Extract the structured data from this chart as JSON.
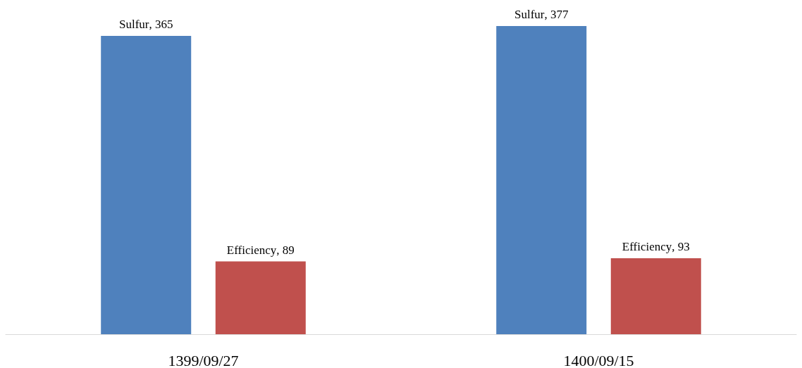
{
  "chart_data": {
    "type": "bar",
    "categories": [
      "1399/09/27",
      "1400/09/15"
    ],
    "series": [
      {
        "name": "Sulfur",
        "color": "#4f81bd",
        "values": [
          365,
          377
        ],
        "value_labels": [
          ", 365",
          ", 377"
        ]
      },
      {
        "name": "Efficiency",
        "color": "#c0504d",
        "values": [
          89,
          93
        ],
        "value_labels": [
          ", 89",
          ", 93"
        ]
      }
    ]
  }
}
